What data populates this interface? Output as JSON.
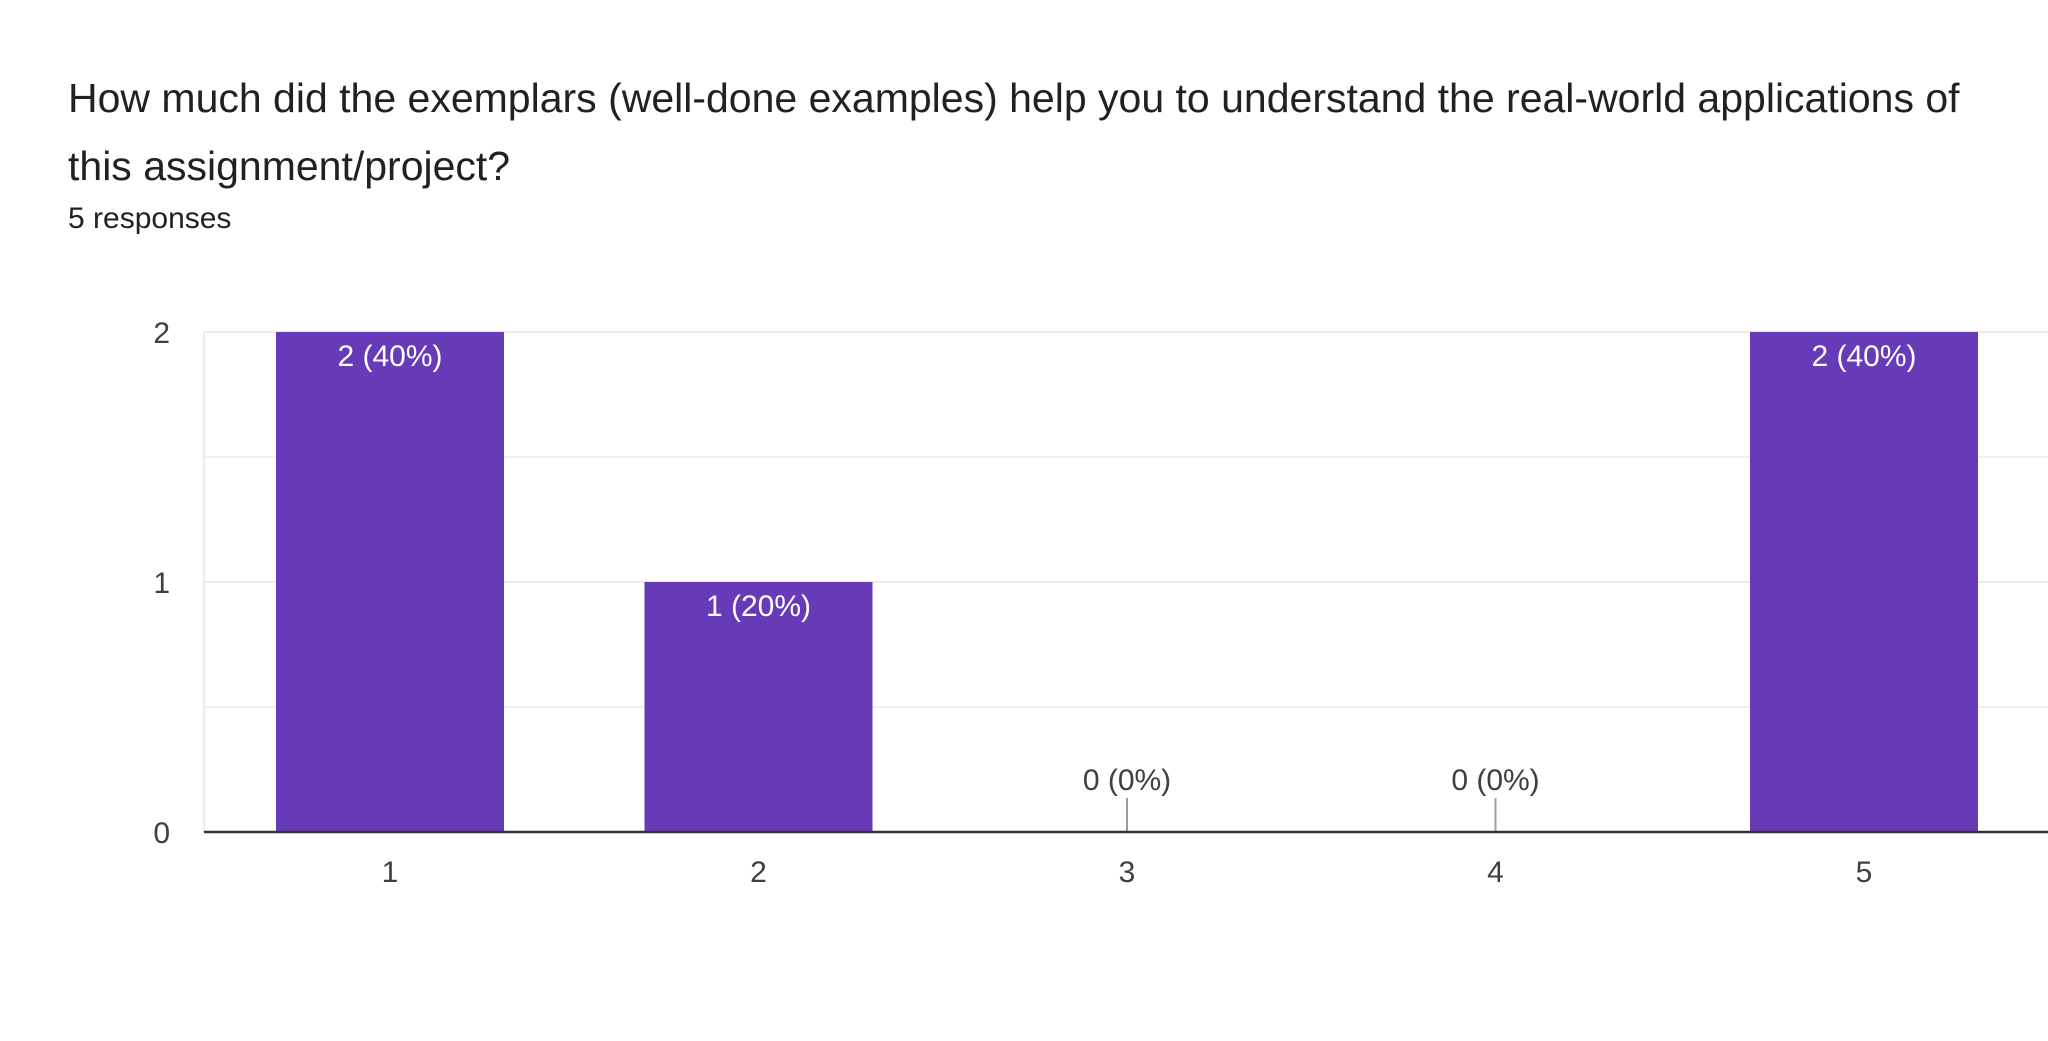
{
  "question": {
    "title": "How much did the exemplars (well-done examples) help you to understand the real-world applications of this assignment/project?",
    "responses": "5 responses"
  },
  "colors": {
    "bar": "#673ab7",
    "grid": "#ebebeb",
    "axis": "#333333",
    "zero_tick": "#9e9e9e"
  },
  "chart_data": {
    "type": "bar",
    "categories": [
      "1",
      "2",
      "3",
      "4",
      "5"
    ],
    "values": [
      2,
      1,
      0,
      0,
      2
    ],
    "labels": [
      "2 (40%)",
      "1 (20%)",
      "0 (0%)",
      "0 (0%)",
      "2 (40%)"
    ],
    "y_ticks": [
      "0",
      "1",
      "2"
    ],
    "ylim": [
      0,
      2
    ],
    "grid": true,
    "title": "",
    "xlabel": "",
    "ylabel": ""
  }
}
